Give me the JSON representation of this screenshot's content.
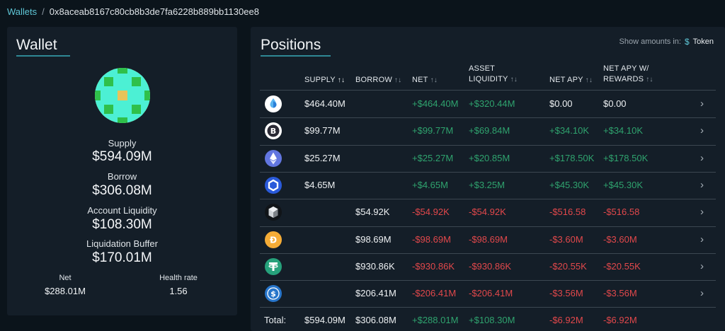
{
  "breadcrumb": {
    "link": "Wallets",
    "separator": "/",
    "current": "0x8aceab8167c80cb8b3de7fa6228b889bb1130ee8"
  },
  "wallet": {
    "title": "Wallet",
    "supply_label": "Supply",
    "supply_value": "$594.09M",
    "borrow_label": "Borrow",
    "borrow_value": "$306.08M",
    "account_liquidity_label": "Account Liquidity",
    "account_liquidity_value": "$108.30M",
    "liquidation_buffer_label": "Liquidation Buffer",
    "liquidation_buffer_value": "$170.01M",
    "net_label": "Net",
    "net_value": "$288.01M",
    "health_label": "Health rate",
    "health_value": "1.56"
  },
  "positions": {
    "title": "Positions",
    "show_amounts_label": "Show amounts in:",
    "dollar_symbol": "$",
    "token_label": "Token",
    "headers": {
      "supply": "SUPPLY",
      "borrow": "BORROW",
      "net": "NET",
      "asset_liquidity_1": "ASSET",
      "asset_liquidity_2": "LIQUIDITY",
      "net_apy": "NET APY",
      "net_apy_rewards_1": "NET APY W/",
      "net_apy_rewards_2": "REWARDS"
    },
    "sort_icon_text": "↑↓",
    "rows": [
      {
        "icon": "eth-drop-icon",
        "supply": "$464.40M",
        "borrow": "",
        "net": "+$464.40M",
        "liquidity": "+$320.44M",
        "apy": "$0.00",
        "apy_rewards": "$0.00",
        "net_sign": "pos",
        "liq_sign": "pos",
        "apy_sign": "neu",
        "apyr_sign": "neu"
      },
      {
        "icon": "bitcoin-icon",
        "supply": "$99.77M",
        "borrow": "",
        "net": "+$99.77M",
        "liquidity": "+$69.84M",
        "apy": "+$34.10K",
        "apy_rewards": "+$34.10K",
        "net_sign": "pos",
        "liq_sign": "pos",
        "apy_sign": "pos",
        "apyr_sign": "pos"
      },
      {
        "icon": "ethereum-icon",
        "supply": "$25.27M",
        "borrow": "",
        "net": "+$25.27M",
        "liquidity": "+$20.85M",
        "apy": "+$178.50K",
        "apy_rewards": "+$178.50K",
        "net_sign": "pos",
        "liq_sign": "pos",
        "apy_sign": "pos",
        "apyr_sign": "pos"
      },
      {
        "icon": "chainlink-icon",
        "supply": "$4.65M",
        "borrow": "",
        "net": "+$4.65M",
        "liquidity": "+$3.25M",
        "apy": "+$45.30K",
        "apy_rewards": "+$45.30K",
        "net_sign": "pos",
        "liq_sign": "pos",
        "apy_sign": "pos",
        "apyr_sign": "pos"
      },
      {
        "icon": "cube-token-icon",
        "supply": "",
        "borrow": "$54.92K",
        "net": "-$54.92K",
        "liquidity": "-$54.92K",
        "apy": "-$516.58",
        "apy_rewards": "-$516.58",
        "net_sign": "neg",
        "liq_sign": "neg",
        "apy_sign": "neg",
        "apyr_sign": "neg"
      },
      {
        "icon": "dai-icon",
        "supply": "",
        "borrow": "$98.69M",
        "net": "-$98.69M",
        "liquidity": "-$98.69M",
        "apy": "-$3.60M",
        "apy_rewards": "-$3.60M",
        "net_sign": "neg",
        "liq_sign": "neg",
        "apy_sign": "neg",
        "apyr_sign": "neg"
      },
      {
        "icon": "tether-icon",
        "supply": "",
        "borrow": "$930.86K",
        "net": "-$930.86K",
        "liquidity": "-$930.86K",
        "apy": "-$20.55K",
        "apy_rewards": "-$20.55K",
        "net_sign": "neg",
        "liq_sign": "neg",
        "apy_sign": "neg",
        "apyr_sign": "neg"
      },
      {
        "icon": "usdc-icon",
        "supply": "",
        "borrow": "$206.41M",
        "net": "-$206.41M",
        "liquidity": "-$206.41M",
        "apy": "-$3.56M",
        "apy_rewards": "-$3.56M",
        "net_sign": "neg",
        "liq_sign": "neg",
        "apy_sign": "neg",
        "apyr_sign": "neg"
      }
    ],
    "total": {
      "label": "Total:",
      "supply": "$594.09M",
      "borrow": "$306.08M",
      "net": "+$288.01M",
      "liquidity": "+$108.30M",
      "apy": "-$6.92M",
      "apy_rewards": "-$6.92M"
    }
  },
  "colors": {
    "positive": "#2fa36e",
    "negative": "#e2484b",
    "accent": "#5fc7d7"
  }
}
